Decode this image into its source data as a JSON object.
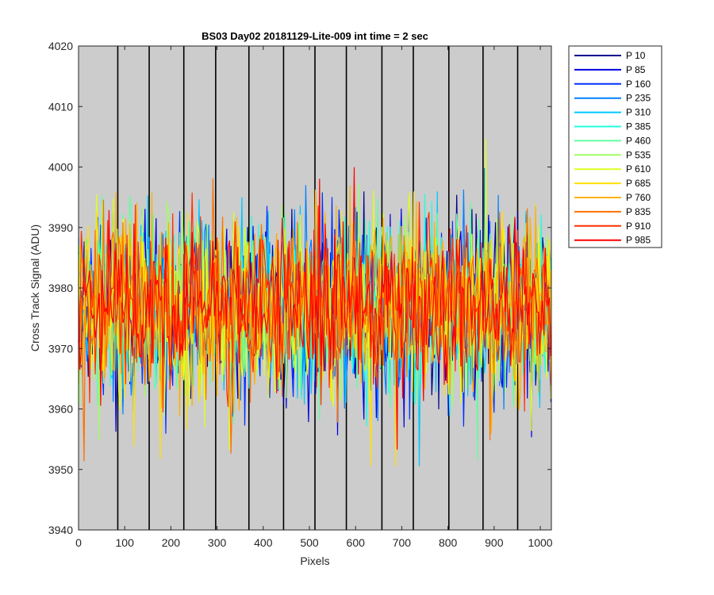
{
  "chart_data": {
    "type": "line",
    "title": "BS03 Day02 20181129-Lite-009 int time = 2 sec",
    "xlabel": "Pixels",
    "ylabel": "Cross Track Signal (ADU)",
    "xlim": [
      0,
      1024
    ],
    "ylim": [
      3940,
      4020
    ],
    "xticks": [
      0,
      100,
      200,
      300,
      400,
      500,
      600,
      700,
      800,
      900,
      1000
    ],
    "yticks": [
      3940,
      3950,
      3960,
      3970,
      3980,
      3990,
      4000,
      4010,
      4020
    ],
    "background_color": "#cccccc",
    "vertical_markers": [
      85,
      153,
      228,
      297,
      369,
      444,
      512,
      580,
      657,
      725,
      802,
      876,
      951
    ],
    "grid": false,
    "legend_position": "outside-right",
    "noise": {
      "mean": 3977,
      "spread": 7,
      "min": 3947,
      "max": 4015
    },
    "series": [
      {
        "name": "P 10",
        "color": "#00008f"
      },
      {
        "name": "P 85",
        "color": "#0000df"
      },
      {
        "name": "P 160",
        "color": "#0030ff"
      },
      {
        "name": "P 235",
        "color": "#0080ff"
      },
      {
        "name": "P 310",
        "color": "#00c8ff"
      },
      {
        "name": "P 385",
        "color": "#20ffdf"
      },
      {
        "name": "P 460",
        "color": "#60ffa0"
      },
      {
        "name": "P 535",
        "color": "#a0ff60"
      },
      {
        "name": "P 610",
        "color": "#dfff20"
      },
      {
        "name": "P 685",
        "color": "#ffe000"
      },
      {
        "name": "P 760",
        "color": "#ffb000"
      },
      {
        "name": "P 835",
        "color": "#ff7000"
      },
      {
        "name": "P 910",
        "color": "#ff3000"
      },
      {
        "name": "P 985",
        "color": "#ff0000"
      }
    ]
  }
}
